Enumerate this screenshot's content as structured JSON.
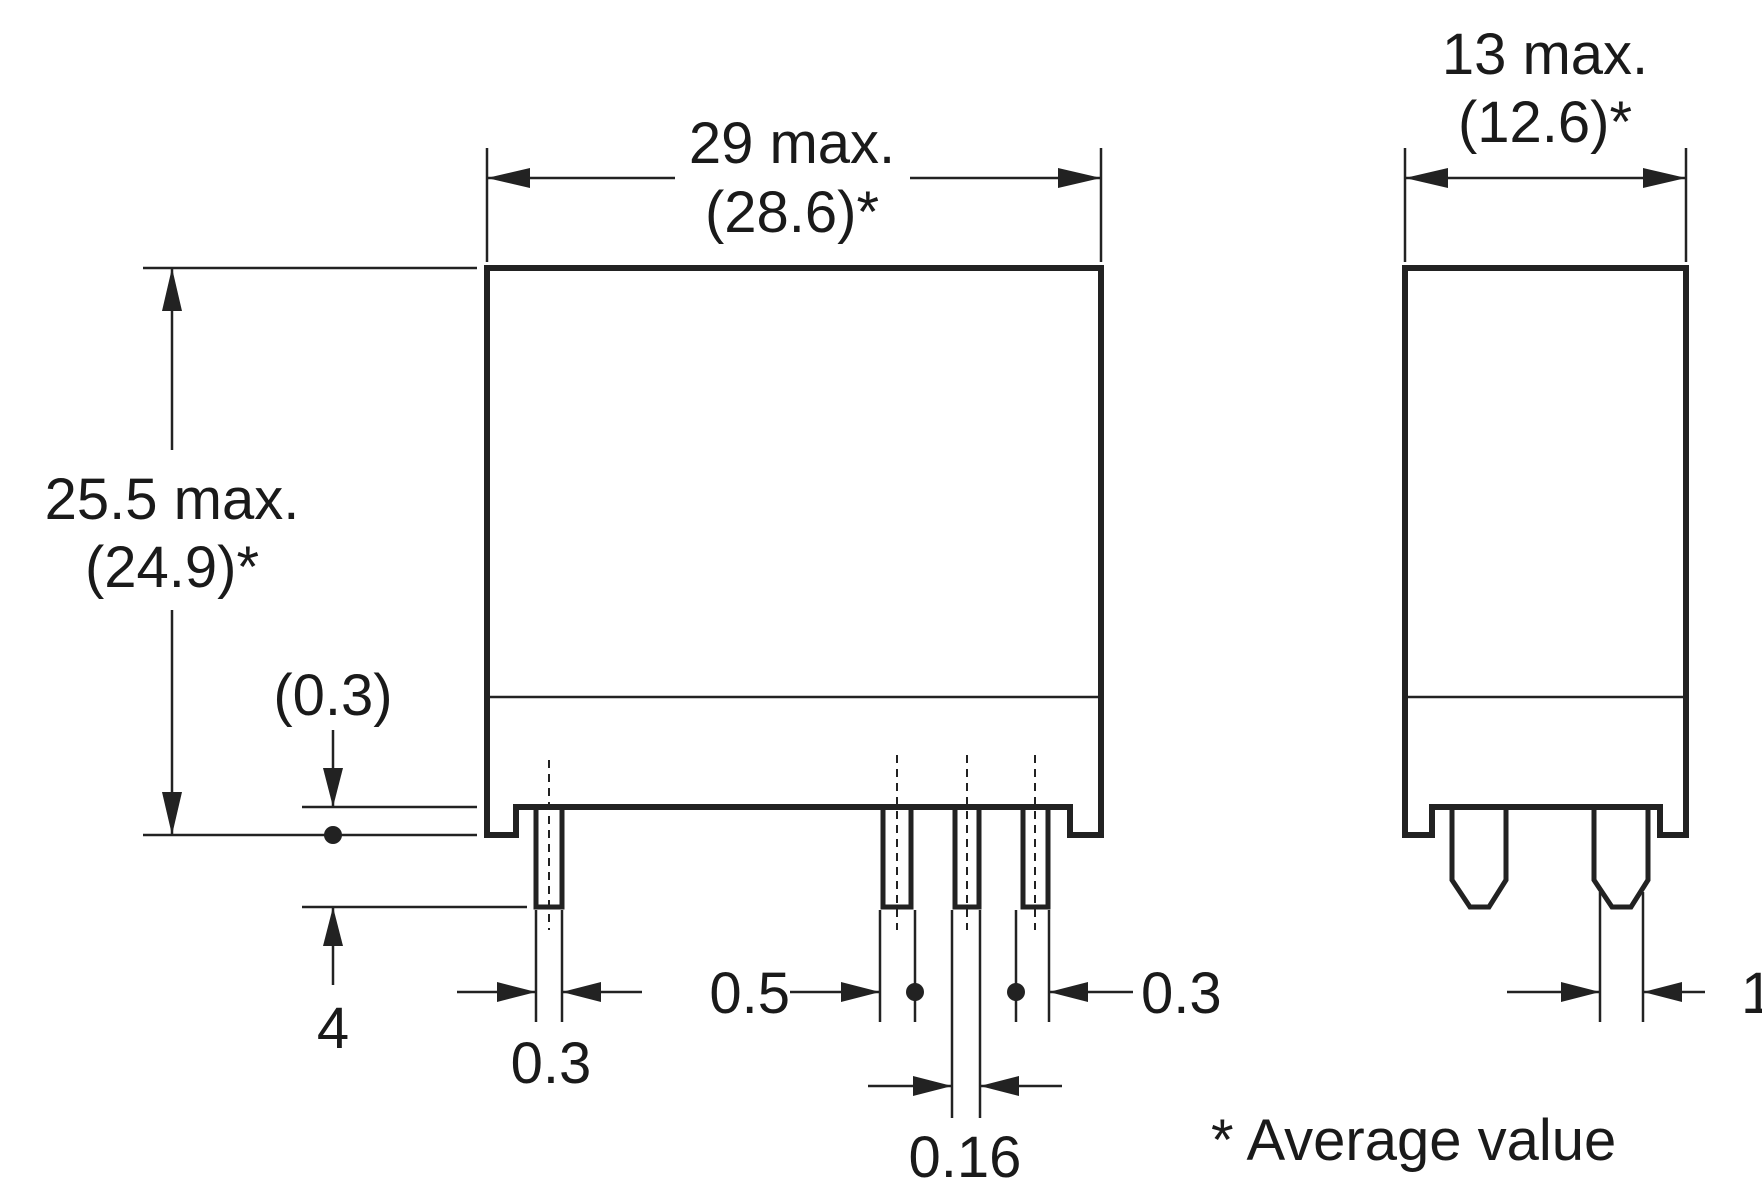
{
  "front_view": {
    "width_label": "29 max.",
    "width_avg_label": "(28.6)*",
    "height_label": "25.5 max.",
    "height_avg_label": "(24.9)*",
    "standoff_label": "(0.3)",
    "pin_length_label": "4",
    "pin_width_label": "0.3",
    "pin_pitch_label_left": "0.5",
    "pin_pitch_label_right": "0.3",
    "pin_thickness_label": "0.16"
  },
  "side_view": {
    "depth_label": "13 max.",
    "depth_avg_label": "(12.6)*",
    "pin_label_partial": "1"
  },
  "footnote": "* Average value"
}
